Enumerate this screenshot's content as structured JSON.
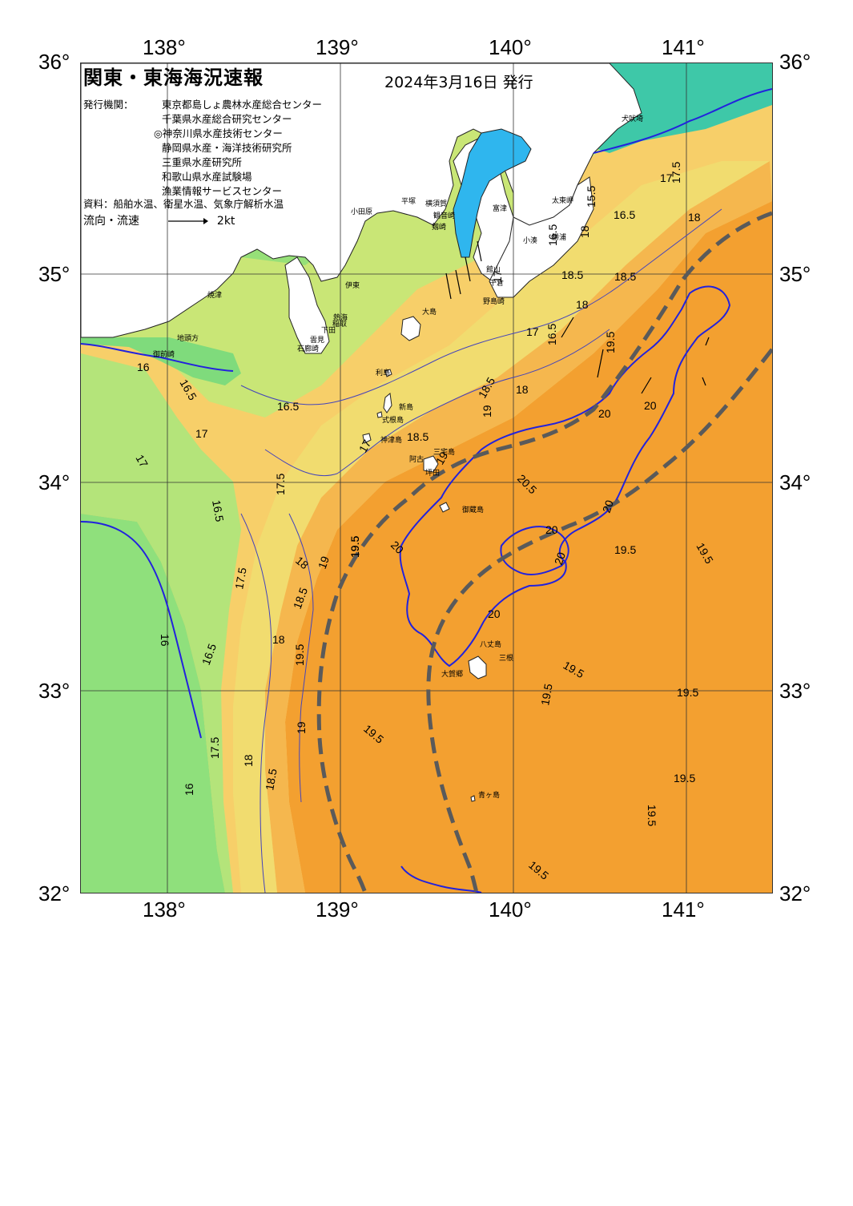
{
  "header": {
    "title": "関東・東海海況速報",
    "issue_date": "2024年3月16日 発行"
  },
  "issuers": {
    "label": "発行機関：",
    "list": [
      "東京都島しょ農林水産総合センター",
      "千葉県水産総合研究センター",
      "◎神奈川県水産技術センター",
      "静岡県水産・海洋技術研究所",
      "三重県水産研究所",
      "和歌山県水産試験場",
      "漁業情報サービスセンター"
    ]
  },
  "sources": "資料：船舶水温、衛星水温、気象庁解析水温",
  "legend": {
    "flow_label": "流向・流速",
    "scale_label": "2kt"
  },
  "axes": {
    "lon_top": [
      "138°",
      "139°",
      "140°",
      "141°"
    ],
    "lon_bottom": [
      "138°",
      "139°",
      "140°",
      "141°"
    ],
    "lat_left": [
      "36°",
      "35°",
      "34°",
      "33°",
      "32°"
    ],
    "lat_right": [
      "36°",
      "35°",
      "34°",
      "33°",
      "32°"
    ]
  },
  "colors": {
    "cool": "#7fe07a",
    "cool2": "#a6e676",
    "mid": "#e3ea7a",
    "warm": "#f7cf69",
    "warm2": "#f5b34a",
    "hot": "#f3a030",
    "hot2": "#f39a2a",
    "bay": "#2fb6ee",
    "teal": "#3ec8a8",
    "land": "#ffffff",
    "isotherm": "#2222dd",
    "kuroshio": "#5a5a5a"
  },
  "places": [
    {
      "name": "犬吠埼"
    },
    {
      "name": "太東岬"
    },
    {
      "name": "勝浦"
    },
    {
      "name": "小湊"
    },
    {
      "name": "館山"
    },
    {
      "name": "千倉"
    },
    {
      "name": "野島崎"
    },
    {
      "name": "富津"
    },
    {
      "name": "横須賀"
    },
    {
      "name": "観音崎"
    },
    {
      "name": "剱崎"
    },
    {
      "name": "平塚"
    },
    {
      "name": "小田原"
    },
    {
      "name": "熱海"
    },
    {
      "name": "伊東"
    },
    {
      "name": "稲取"
    },
    {
      "name": "下田"
    },
    {
      "name": "石廊崎"
    },
    {
      "name": "雲見"
    },
    {
      "name": "焼津"
    },
    {
      "name": "御前崎"
    },
    {
      "name": "地頭方"
    },
    {
      "name": "大島"
    },
    {
      "name": "利島"
    },
    {
      "name": "新島"
    },
    {
      "name": "式根島"
    },
    {
      "name": "神津島"
    },
    {
      "name": "三宅島"
    },
    {
      "name": "阿古"
    },
    {
      "name": "坪田"
    },
    {
      "name": "御蔵島"
    },
    {
      "name": "八丈島"
    },
    {
      "name": "三根"
    },
    {
      "name": "大賀郷"
    },
    {
      "name": "青ヶ島"
    }
  ],
  "temp_labels": [
    {
      "t": "17.5"
    },
    {
      "t": "17"
    },
    {
      "t": "15.5"
    },
    {
      "t": "16.5"
    },
    {
      "t": "18"
    },
    {
      "t": "18"
    },
    {
      "t": "18.5"
    },
    {
      "t": "18.5"
    },
    {
      "t": "16.5"
    },
    {
      "t": "18"
    },
    {
      "t": "17"
    },
    {
      "t": "16.5"
    },
    {
      "t": "17"
    },
    {
      "t": "16"
    },
    {
      "t": "16.5"
    },
    {
      "t": "16.5"
    },
    {
      "t": "17"
    },
    {
      "t": "17"
    },
    {
      "t": "18.5"
    },
    {
      "t": "18"
    },
    {
      "t": "19"
    },
    {
      "t": "19.5"
    },
    {
      "t": "20"
    },
    {
      "t": "20"
    },
    {
      "t": "20.5"
    },
    {
      "t": "18.5"
    },
    {
      "t": "19"
    },
    {
      "t": "17.5"
    },
    {
      "t": "17"
    },
    {
      "t": "16.5"
    },
    {
      "t": "17.5"
    },
    {
      "t": "18"
    },
    {
      "t": "19"
    },
    {
      "t": "19.5"
    },
    {
      "t": "18.5"
    },
    {
      "t": "20"
    },
    {
      "t": "18"
    },
    {
      "t": "16"
    },
    {
      "t": "16.5"
    },
    {
      "t": "19.5"
    },
    {
      "t": "20"
    },
    {
      "t": "20"
    },
    {
      "t": "19.5"
    },
    {
      "t": "19.5"
    },
    {
      "t": "20"
    },
    {
      "t": "20"
    },
    {
      "t": "19.5"
    },
    {
      "t": "19.5"
    },
    {
      "t": "19.5"
    },
    {
      "t": "19.5"
    },
    {
      "t": "19"
    },
    {
      "t": "19.5"
    },
    {
      "t": "17.5"
    },
    {
      "t": "18"
    },
    {
      "t": "18.5"
    },
    {
      "t": "16"
    },
    {
      "t": "19.5"
    },
    {
      "t": "19.5"
    },
    {
      "t": "19.5"
    },
    {
      "t": "19.5"
    }
  ]
}
